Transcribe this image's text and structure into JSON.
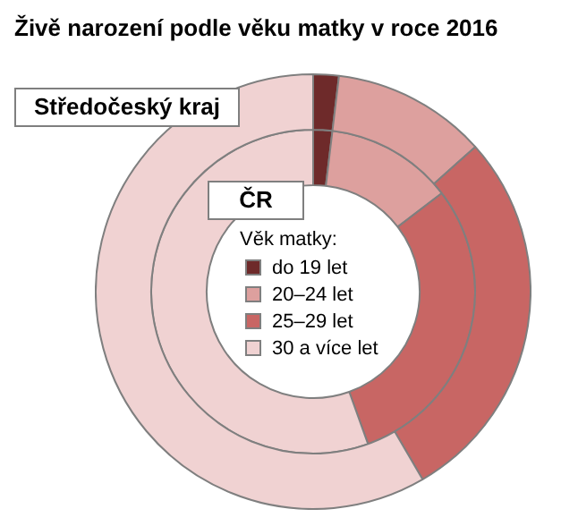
{
  "chart_data": {
    "type": "donut",
    "title": "Živě narození podle věku matky v roce 2016",
    "legend_title": "Věk matky:",
    "legend": "center",
    "categories": [
      "do 19 let",
      "20–24 let",
      "25–29 let",
      "30 a více let"
    ],
    "series": [
      {
        "name": "Středočeský kraj",
        "colors": [
          "#6e2a2a",
          "#dda09e",
          "#c86664",
          "#f0d2d2"
        ],
        "values": [
          1.9,
          11.5,
          28.2,
          58.4
        ]
      },
      {
        "name": "ČR",
        "colors": [
          "#6e2a2a",
          "#dda09e",
          "#c86664",
          "#f0d2d2"
        ],
        "values": [
          1.9,
          12.7,
          29.9,
          55.5
        ]
      }
    ]
  }
}
